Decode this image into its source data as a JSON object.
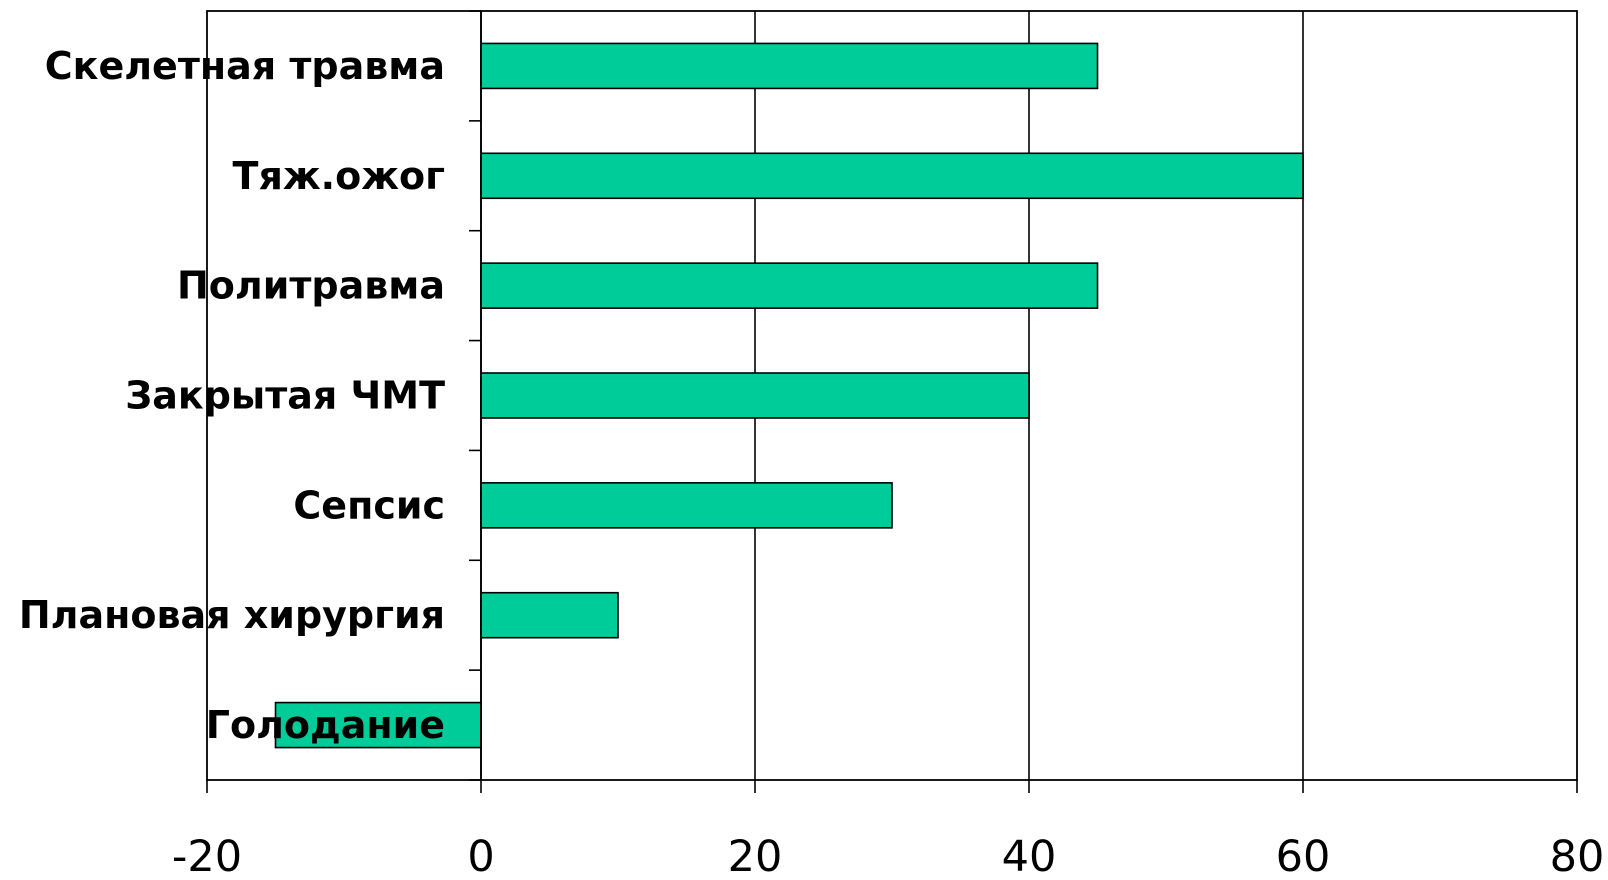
{
  "chart_data": {
    "type": "bar",
    "orientation": "horizontal",
    "categories": [
      "Скелетная травма",
      "Тяж.ожог",
      "Политравма",
      "Закрытая ЧМТ",
      "Сепсис",
      "Плановая хирургия",
      "Голодание"
    ],
    "values": [
      45,
      60,
      45,
      40,
      30,
      10,
      -15
    ],
    "title": "",
    "xlabel": "",
    "ylabel": "",
    "xlim": [
      -20,
      80
    ],
    "x_ticks": [
      -20,
      0,
      20,
      40,
      60,
      80
    ],
    "x_tick_labels": [
      "-20",
      "0",
      "20",
      "40",
      "60",
      "80"
    ],
    "grid": "vertical",
    "legend": "none",
    "bar_color": "#00CC99",
    "edge_color": "#000000"
  }
}
